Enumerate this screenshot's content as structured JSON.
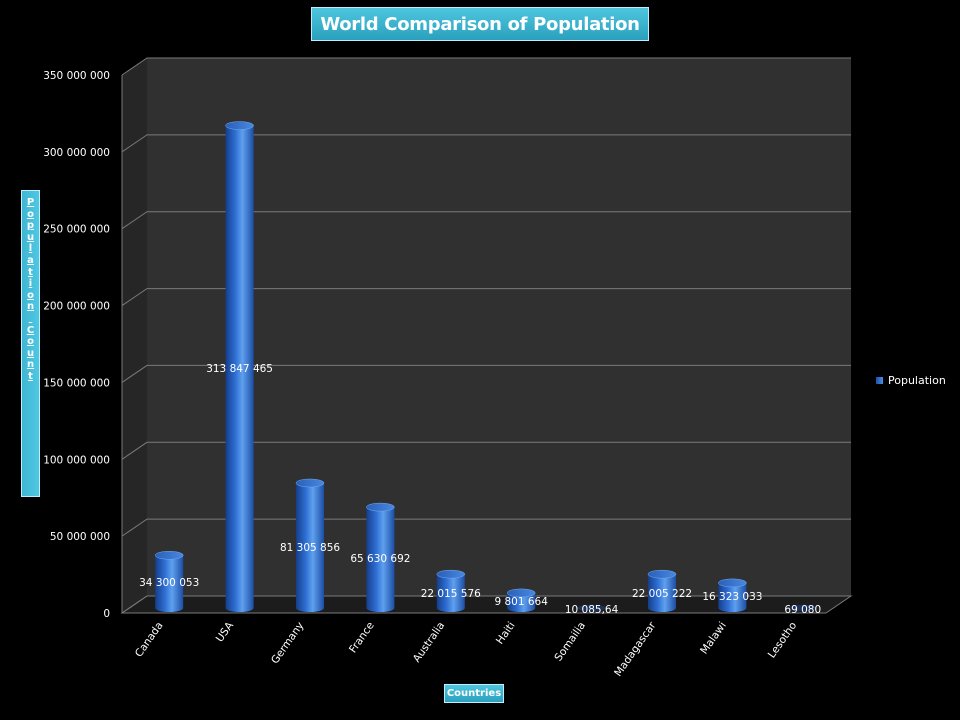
{
  "chart_data": {
    "type": "bar",
    "title": "World Comparison of Population",
    "xlabel": "Countries",
    "ylabel": "Population Count",
    "categories": [
      "Canada",
      "USA",
      "Germany",
      "France",
      "Australia",
      "Haiti",
      "Somailia",
      "Madagascar",
      "Malawi",
      "Lesotho"
    ],
    "series": [
      {
        "name": "Population",
        "values": [
          34300053,
          313847465,
          81305856,
          65630692,
          22015576,
          9801664,
          10085.64,
          22005222,
          16323033,
          69080
        ],
        "labels": [
          "34 300 053",
          "313 847 465",
          "81 305 856",
          "65 630 692",
          "22 015 576",
          "9 801 664",
          "10 085,64",
          "22 005 222",
          "16 323 033",
          "69 080"
        ]
      }
    ],
    "yticks": [
      "0",
      "50 000 000",
      "100 000 000",
      "150 000 000",
      "200 000 000",
      "250 000 000",
      "300 000 000",
      "350 000 000"
    ],
    "ylim": [
      0,
      350000000
    ],
    "grid": true,
    "legend_position": "right",
    "colors": {
      "bar": "#2a66c9",
      "bar_light": "#5fa0ee",
      "bar_dark": "#153e8a",
      "wall": "#333333",
      "grid": "#7a7a7a"
    }
  }
}
